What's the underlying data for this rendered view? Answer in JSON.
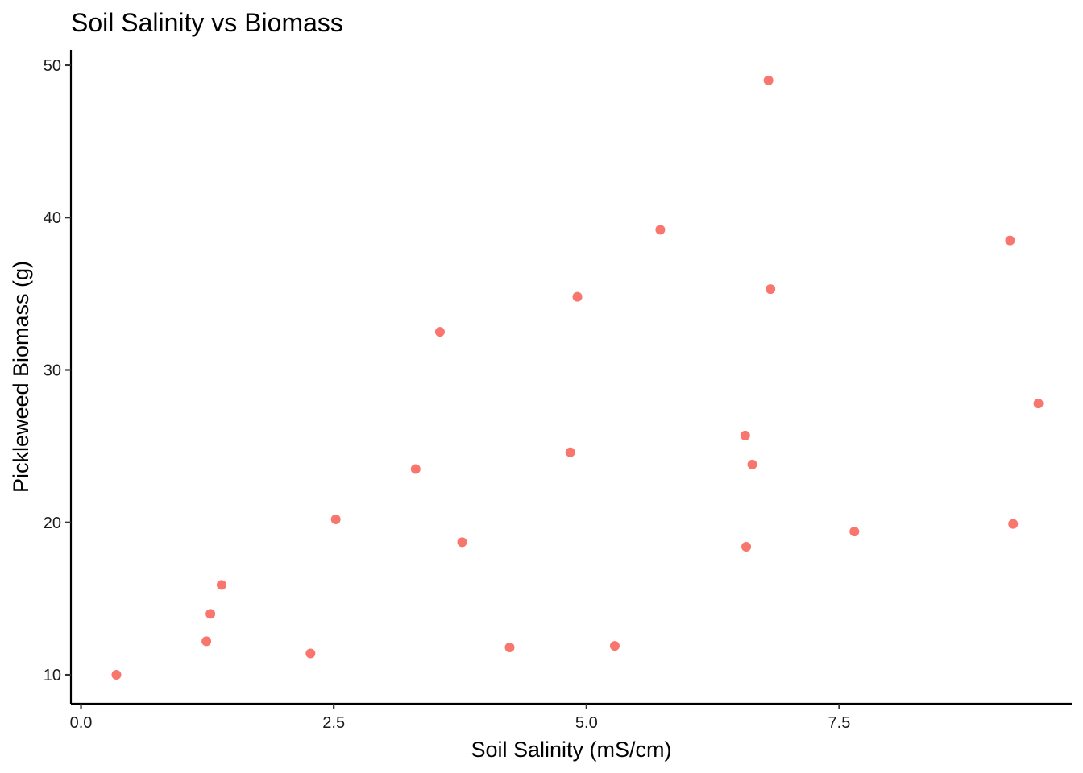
{
  "chart_data": {
    "type": "scatter",
    "title": "Soil Salinity vs Biomass",
    "xlabel": "Soil Salinity (mS/cm)",
    "ylabel": "Pickleweed Biomass (g)",
    "xlim": [
      -0.1,
      9.8
    ],
    "ylim": [
      8.1,
      51
    ],
    "x_ticks": [
      0,
      2.5,
      5,
      7.5
    ],
    "x_tick_labels": [
      "0.0",
      "2.5",
      "5.0",
      "7.5"
    ],
    "y_ticks": [
      10,
      20,
      30,
      40,
      50
    ],
    "y_tick_labels": [
      "10",
      "20",
      "30",
      "40",
      "50"
    ],
    "grid": false,
    "legend": "none",
    "point_color": "#F8766D",
    "series": [
      {
        "points": [
          {
            "x": 0.35,
            "y": 10.0
          },
          {
            "x": 1.24,
            "y": 12.2
          },
          {
            "x": 1.28,
            "y": 14.0
          },
          {
            "x": 1.39,
            "y": 15.9
          },
          {
            "x": 2.27,
            "y": 11.4
          },
          {
            "x": 2.52,
            "y": 20.2
          },
          {
            "x": 3.31,
            "y": 23.5
          },
          {
            "x": 3.55,
            "y": 32.5
          },
          {
            "x": 3.77,
            "y": 18.7
          },
          {
            "x": 4.24,
            "y": 11.8
          },
          {
            "x": 4.84,
            "y": 24.6
          },
          {
            "x": 4.91,
            "y": 34.8
          },
          {
            "x": 5.28,
            "y": 11.9
          },
          {
            "x": 5.73,
            "y": 39.2
          },
          {
            "x": 6.57,
            "y": 25.7
          },
          {
            "x": 6.58,
            "y": 18.4
          },
          {
            "x": 6.64,
            "y": 23.8
          },
          {
            "x": 6.8,
            "y": 49.0
          },
          {
            "x": 6.82,
            "y": 35.3
          },
          {
            "x": 7.65,
            "y": 19.4
          },
          {
            "x": 9.19,
            "y": 38.5
          },
          {
            "x": 9.22,
            "y": 19.9
          },
          {
            "x": 9.47,
            "y": 27.8
          }
        ]
      }
    ]
  }
}
